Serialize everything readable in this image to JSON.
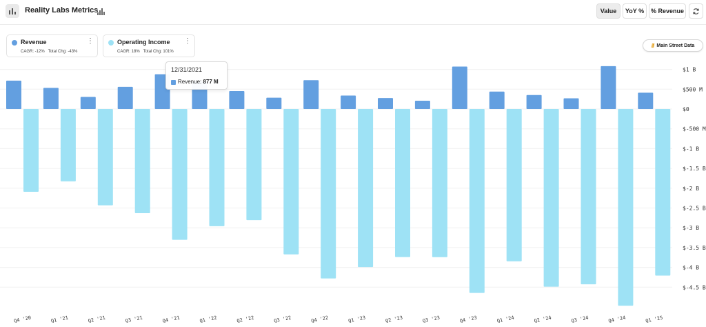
{
  "header": {
    "title": "Reality Labs Metrics",
    "buttons": {
      "value": "Value",
      "yoy": "YoY %",
      "revenue_pct": "% Revenue"
    }
  },
  "legend": {
    "revenue": {
      "name": "Revenue",
      "cagr": "CAGR: -12%",
      "total_chg": "Total Chg: -43%",
      "menu": "⋮"
    },
    "operating_income": {
      "name": "Operating Income",
      "cagr": "CAGR: 18%",
      "total_chg": "Total Chg: 101%",
      "menu": "⋮"
    }
  },
  "badge": {
    "mark": "///",
    "label": "Main Street Data"
  },
  "tooltip": {
    "date": "12/31/2021",
    "series": "Revenue:",
    "value": "877 M"
  },
  "colors": {
    "revenue": "#639fe0",
    "operating_income": "#9ee2f5",
    "grid": "#f0f0f0",
    "axis_text": "#333333"
  },
  "chart_data": {
    "type": "bar",
    "title": "Reality Labs Metrics",
    "categories": [
      "Q4 '20",
      "Q1 '21",
      "Q2 '21",
      "Q3 '21",
      "Q4 '21",
      "Q1 '22",
      "Q2 '22",
      "Q3 '22",
      "Q4 '22",
      "Q1 '23",
      "Q2 '23",
      "Q3 '23",
      "Q4 '23",
      "Q1 '24",
      "Q2 '24",
      "Q3 '24",
      "Q4 '24",
      "Q1 '25"
    ],
    "series": [
      {
        "name": "Revenue",
        "values": [
          717,
          534,
          305,
          560,
          877,
          695,
          452,
          285,
          727,
          339,
          276,
          210,
          1071,
          440,
          353,
          270,
          1083,
          412
        ]
      },
      {
        "name": "Operating Income",
        "values": [
          -2090,
          -1827,
          -2432,
          -2631,
          -3304,
          -2960,
          -2806,
          -3672,
          -4279,
          -3992,
          -3739,
          -3742,
          -4646,
          -3846,
          -4488,
          -4428,
          -4967,
          -4207
        ]
      }
    ],
    "y_ticks": [
      1000,
      500,
      0,
      -500,
      -1000,
      -1500,
      -2000,
      -2500,
      -3000,
      -3500,
      -4000,
      -4500
    ],
    "y_tick_labels": [
      "$1 B",
      "$500 M",
      "$0",
      "$-500 M",
      "$-1 B",
      "$-1.5 B",
      "$-2 B",
      "$-2.5 B",
      "$-3 B",
      "$-3.5 B",
      "$-4 B",
      "$-4.5 B"
    ],
    "ylim": [
      -5000,
      1100
    ],
    "units": "USD millions",
    "grid": true,
    "legend_position": "top-left"
  }
}
